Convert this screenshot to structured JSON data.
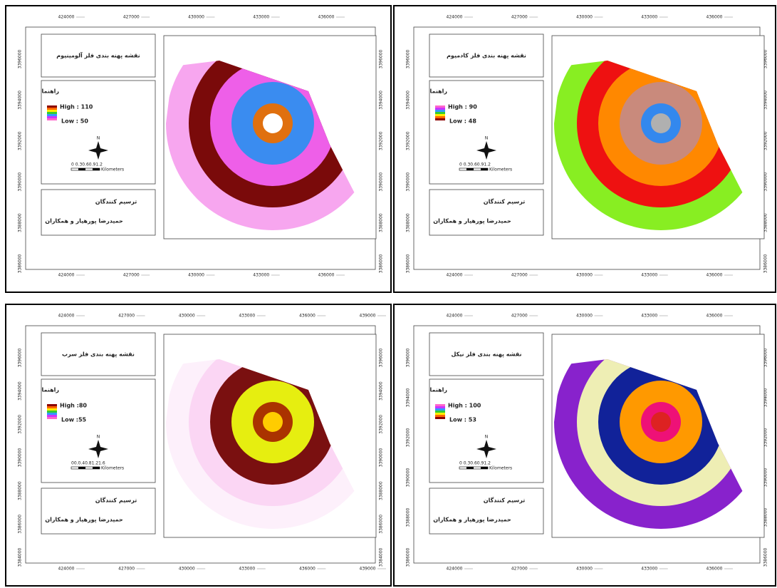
{
  "panels": [
    {
      "title": "نقشه پهنه بندی فلز آلومینیوم",
      "legend_title": "راهنما",
      "high": "High : 110",
      "low": "Low : 50",
      "north": "N",
      "scale": "0 0.30.60.91.2",
      "scale_unit": "Kilometers",
      "credit_title": "ترسیم کنندگان",
      "credit_names": "حمیدرضا پورهیار و همکاران",
      "x_labels": [
        424000,
        427000,
        430000,
        433000,
        436000
      ],
      "y_labels": [
        3396000,
        3394000,
        3392000,
        3390000,
        3388000,
        3386000
      ],
      "zone_colors": [
        "#f7a6ef",
        "#7a0a0a",
        "#ee5fe8",
        "#3a8cf0",
        "#e0700f",
        "#ffffff"
      ]
    },
    {
      "title": "نقشه پهنه بندی فلز کادمیوم",
      "legend_title": "راهنما",
      "high": "High : 90",
      "low": "Low : 48",
      "north": "N",
      "scale": "0 0.30.60.91.2",
      "scale_unit": "Kilometers",
      "credit_title": "ترسیم کنندگان",
      "credit_names": "حمیدرضا پورهیار و همکاران",
      "x_labels": [
        424000,
        427000,
        430000,
        433000,
        436000
      ],
      "y_labels": [
        3396000,
        3394000,
        3392000,
        3390000,
        3388000,
        3386000
      ],
      "zone_colors": [
        "#88ee22",
        "#ee1111",
        "#ff8800",
        "#c98a7c",
        "#3388ee",
        "#b0b0b0"
      ]
    },
    {
      "title": "نقشه پهنه بندی فلز سرب",
      "legend_title": "راهنما",
      "high": "High :80",
      "low": "Low :55",
      "north": "N",
      "scale": "00.0.40.81.21.6",
      "scale_unit": "Kilometers",
      "credit_title": "ترسیم کنندگان",
      "credit_names": "حمیدرضا پورهیار و همکاران",
      "x_labels": [
        424000,
        427000,
        430000,
        433000,
        436000,
        439000
      ],
      "y_labels": [
        3396000,
        3394000,
        3392000,
        3390000,
        3388000,
        3386000,
        3384000
      ],
      "zone_colors": [
        "#fdf0fb",
        "#fbd6f4",
        "#7a1010",
        "#e6ee10",
        "#aa3300",
        "#ffcc00"
      ]
    },
    {
      "title": "نقشه پهنه بندی فلز نیکل",
      "legend_title": "راهنما",
      "high": "High : 100",
      "low": "Low : 53",
      "north": "N",
      "scale": "0 0.30.60.91.2",
      "scale_unit": "Kilometers",
      "credit_title": "ترسیم کنندگان",
      "credit_names": "حمیدرضا پورهیار و همکاران",
      "x_labels": [
        424000,
        427000,
        430000,
        433000,
        436000
      ],
      "y_labels": [
        3396000,
        3394000,
        3392000,
        3390000,
        3388000,
        3386000
      ],
      "zone_colors": [
        "#8822cc",
        "#eeeeb4",
        "#112299",
        "#ff9900",
        "#ee1177",
        "#dd2222"
      ]
    }
  ]
}
